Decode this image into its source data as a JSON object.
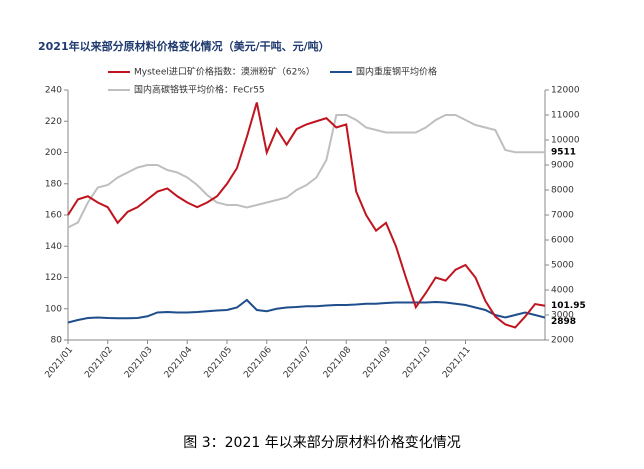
{
  "chart_data": {
    "type": "line",
    "title": "2021年以来部分原材料价格变化情况（美元/干吨、元/吨）",
    "caption": "图 3：2021 年以来部分原材料价格变化情况",
    "categories": [
      "2021/01",
      null,
      null,
      null,
      "2021/02",
      null,
      null,
      null,
      "2021/03",
      null,
      null,
      null,
      "2021/04",
      null,
      null,
      null,
      "2021/05",
      null,
      null,
      null,
      "2021/06",
      null,
      null,
      null,
      "2021/07",
      null,
      null,
      null,
      "2021/08",
      null,
      null,
      null,
      "2021/09",
      null,
      null,
      null,
      "2021/10",
      null,
      null,
      null,
      "2021/11",
      null,
      null,
      null,
      null,
      null,
      null,
      null,
      null
    ],
    "ylim": [
      80,
      240
    ],
    "yticks": [
      80,
      100,
      120,
      140,
      160,
      180,
      200,
      220,
      240
    ],
    "y2lim": [
      2000,
      12000
    ],
    "y2ticks": [
      2000,
      3000,
      4000,
      5000,
      6000,
      7000,
      8000,
      9000,
      10000,
      11000,
      12000
    ],
    "grid": false,
    "series": [
      {
        "name": "Mysteel进口矿价格指数：澳洲粉矿（62%）",
        "color": "#c0141e",
        "axis": "y",
        "end_label": "101.95",
        "values": [
          160,
          170,
          172,
          168,
          165,
          155,
          162,
          165,
          170,
          175,
          177,
          172,
          168,
          165,
          168,
          172,
          180,
          190,
          210,
          232,
          200,
          215,
          205,
          215,
          218,
          220,
          222,
          216,
          218,
          175,
          160,
          150,
          155,
          140,
          120,
          101,
          110,
          120,
          118,
          125,
          128,
          120,
          105,
          95,
          90,
          88,
          95,
          103,
          101.95
        ]
      },
      {
        "name": "国内重废钢平均价格",
        "color": "#1f4e8c",
        "axis": "y2",
        "end_label": "2898",
        "values": [
          2700,
          2800,
          2880,
          2900,
          2880,
          2870,
          2870,
          2880,
          2950,
          3100,
          3120,
          3100,
          3100,
          3120,
          3150,
          3180,
          3200,
          3300,
          3600,
          3200,
          3150,
          3250,
          3300,
          3320,
          3350,
          3350,
          3380,
          3400,
          3400,
          3420,
          3450,
          3450,
          3480,
          3500,
          3500,
          3500,
          3500,
          3520,
          3500,
          3450,
          3400,
          3300,
          3200,
          3000,
          2900,
          3000,
          3100,
          3000,
          2898
        ]
      },
      {
        "name": "国内高碳铬铁平均价格：FeCr55",
        "color": "#bfbfbf",
        "axis": "y2",
        "end_label": "9511",
        "values": [
          6500,
          6700,
          7500,
          8100,
          8200,
          8500,
          8700,
          8900,
          9000,
          9000,
          8800,
          8700,
          8500,
          8200,
          7800,
          7500,
          7400,
          7400,
          7300,
          7400,
          7500,
          7600,
          7700,
          8000,
          8200,
          8500,
          9200,
          11000,
          11000,
          10800,
          10500,
          10400,
          10300,
          10300,
          10300,
          10300,
          10500,
          10800,
          11000,
          11000,
          10800,
          10600,
          10500,
          10400,
          9600,
          9511,
          9511,
          9511,
          9511
        ]
      }
    ]
  }
}
